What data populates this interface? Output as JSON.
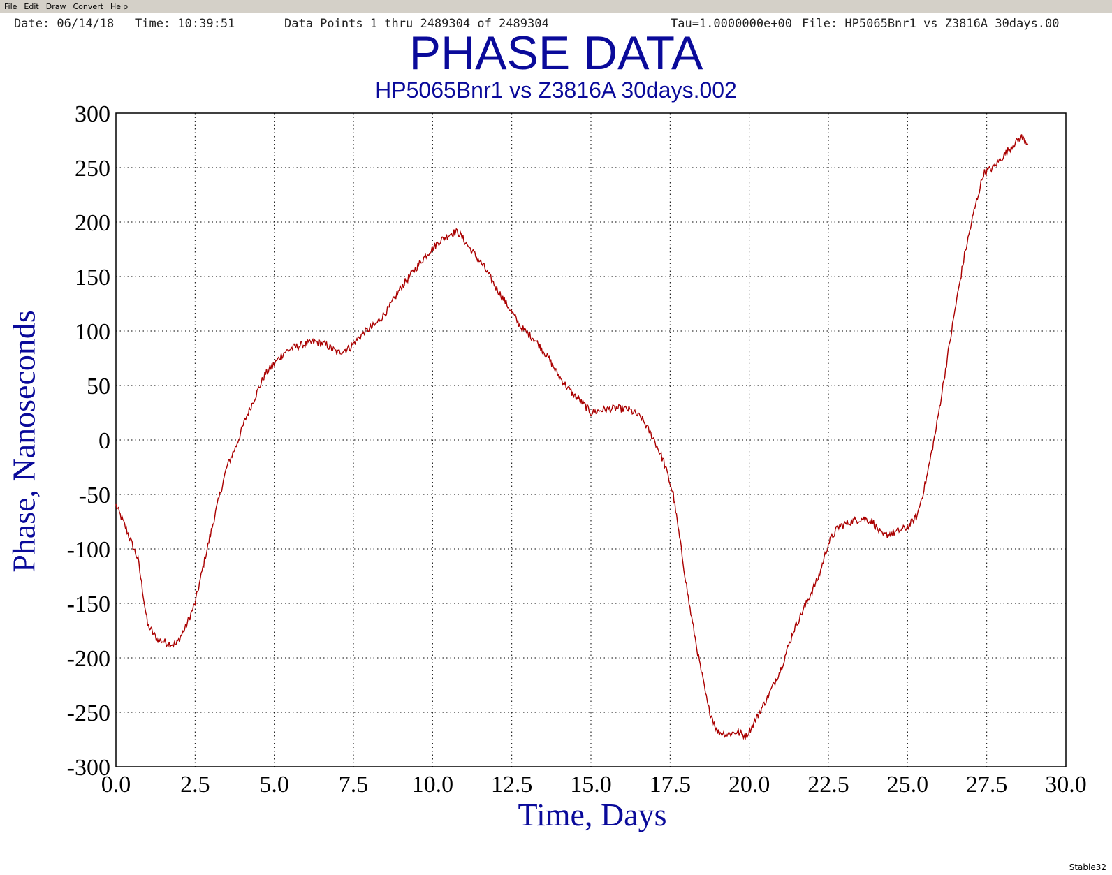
{
  "menu": {
    "items": [
      "File",
      "Edit",
      "Draw",
      "Convert",
      "Help"
    ]
  },
  "header": {
    "date": "Date: 06/14/18",
    "time": "Time: 10:39:51",
    "data_points": "Data Points 1 thru 2489304 of 2489304",
    "tau": "Tau=1.0000000e+00",
    "file": "File: HP5065Bnr1 vs Z3816A 30days.00"
  },
  "footer": {
    "app": "Stable32"
  },
  "colors": {
    "title": "#0a0a9a",
    "series": "#aa0000",
    "grid": "#000000"
  },
  "chart_data": {
    "type": "line",
    "title": "PHASE DATA",
    "subtitle": "HP5065Bnr1 vs Z3816A 30days.002",
    "xlabel": "Time, Days",
    "ylabel": "Phase, Nanoseconds",
    "xlim": [
      0,
      30
    ],
    "ylim": [
      -300,
      300
    ],
    "grid": true,
    "x_ticks": [
      "0.0",
      "2.5",
      "5.0",
      "7.5",
      "10.0",
      "12.5",
      "15.0",
      "17.5",
      "20.0",
      "22.5",
      "25.0",
      "27.5",
      "30.0"
    ],
    "y_ticks": [
      "300",
      "250",
      "200",
      "150",
      "100",
      "50",
      "0",
      "-50",
      "-100",
      "-150",
      "-200",
      "-250",
      "-300"
    ],
    "series": [
      {
        "x": [
          0.0,
          0.3,
          0.7,
          1.0,
          1.3,
          1.6,
          1.9,
          2.2,
          2.5,
          2.8,
          3.2,
          3.5,
          3.8,
          4.1,
          4.4,
          4.7,
          5.0,
          5.3,
          5.6,
          6.0,
          6.3,
          6.6,
          7.0,
          7.4,
          7.8,
          8.2,
          8.6,
          9.0,
          9.4,
          9.8,
          10.2,
          10.6,
          10.8,
          11.2,
          11.6,
          12.0,
          12.4,
          12.8,
          13.2,
          13.6,
          14.0,
          14.4,
          14.8,
          15.0,
          15.4,
          15.8,
          16.2,
          16.6,
          17.0,
          17.3,
          17.6,
          17.8,
          18.1,
          18.4,
          18.7,
          19.0,
          19.3,
          19.6,
          19.9,
          20.2,
          20.6,
          21.0,
          21.4,
          21.8,
          22.2,
          22.5,
          22.8,
          23.2,
          23.6,
          23.9,
          24.2,
          24.6,
          25.0,
          25.3,
          25.6,
          25.9,
          26.2,
          26.5,
          26.8,
          27.1,
          27.4,
          27.7,
          28.0,
          28.3,
          28.6,
          28.8
        ],
        "y": [
          -60,
          -80,
          -110,
          -170,
          -183,
          -186,
          -188,
          -172,
          -150,
          -110,
          -60,
          -25,
          -5,
          20,
          40,
          60,
          70,
          80,
          85,
          88,
          90,
          88,
          80,
          85,
          98,
          106,
          120,
          140,
          155,
          170,
          182,
          190,
          191,
          175,
          160,
          140,
          122,
          103,
          93,
          78,
          58,
          43,
          32,
          25,
          28,
          29,
          28,
          20,
          0,
          -20,
          -50,
          -90,
          -150,
          -200,
          -245,
          -268,
          -270,
          -268,
          -272,
          -257,
          -235,
          -210,
          -175,
          -150,
          -125,
          -95,
          -80,
          -75,
          -72,
          -75,
          -88,
          -85,
          -80,
          -70,
          -35,
          10,
          65,
          120,
          170,
          210,
          245,
          250,
          260,
          270,
          278,
          272
        ]
      }
    ]
  }
}
